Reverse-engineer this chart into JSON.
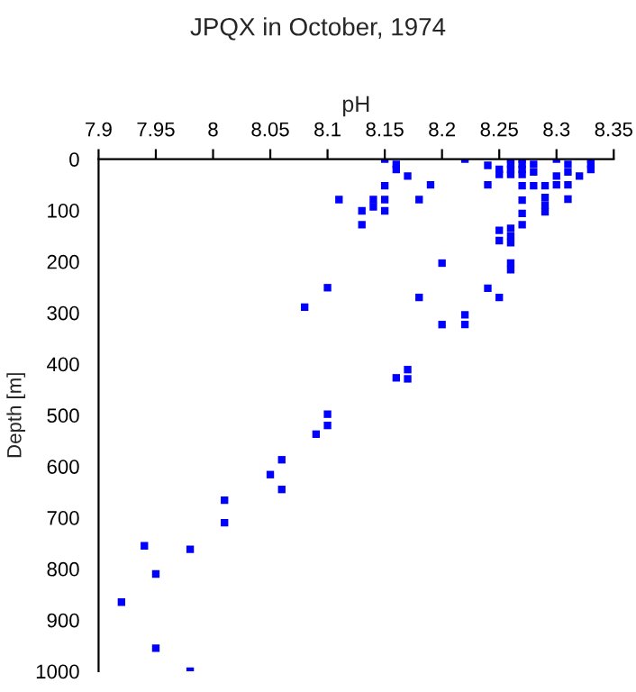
{
  "chart_data": {
    "type": "scatter",
    "title": "JPQX in October, 1974",
    "xlabel": "pH",
    "ylabel": "Depth [m]",
    "xlim": [
      7.9,
      8.35
    ],
    "xticks": [
      7.9,
      7.95,
      8,
      8.05,
      8.1,
      8.15,
      8.2,
      8.25,
      8.3,
      8.35
    ],
    "ylim": [
      1000,
      0
    ],
    "yticks": [
      0,
      100,
      200,
      300,
      400,
      500,
      600,
      700,
      800,
      900,
      1000
    ],
    "marker": "square",
    "grid": false,
    "legend": false,
    "series": [
      {
        "color": "#0000ff",
        "x": [
          8.15,
          8.16,
          8.16,
          8.17,
          8.22,
          8.24,
          8.25,
          8.25,
          8.26,
          8.26,
          8.26,
          8.26,
          8.27,
          8.27,
          8.27,
          8.27,
          8.28,
          8.28,
          8.3,
          8.31,
          8.31,
          8.33,
          8.33,
          8.33,
          8.15,
          8.19,
          8.24,
          8.27,
          8.28,
          8.29,
          8.3,
          8.31,
          8.32,
          8.3,
          8.11,
          8.14,
          8.15,
          8.18,
          8.27,
          8.29,
          8.29,
          8.31,
          8.14,
          8.13,
          8.15,
          8.27,
          8.29,
          8.13,
          8.27,
          8.25,
          8.25,
          8.26,
          8.26,
          8.26,
          8.2,
          8.26,
          8.26,
          8.1,
          8.24,
          8.18,
          8.25,
          8.08,
          8.22,
          8.22,
          8.2,
          8.17,
          8.17,
          8.16,
          8.1,
          8.1,
          8.09,
          8.06,
          8.05,
          8.06,
          8.01,
          8.01,
          7.94,
          7.98,
          7.95,
          7.92,
          7.95,
          7.98
        ],
        "values": [
          0,
          10,
          20,
          33,
          0,
          12,
          20,
          30,
          0,
          10,
          20,
          30,
          0,
          10,
          20,
          30,
          10,
          25,
          0,
          10,
          25,
          0,
          10,
          20,
          52,
          50,
          50,
          52,
          52,
          52,
          50,
          50,
          33,
          33,
          79,
          79,
          79,
          79,
          80,
          75,
          90,
          78,
          93,
          101,
          101,
          106,
          103,
          128,
          128,
          139,
          159,
          135,
          150,
          163,
          203,
          203,
          216,
          251,
          252,
          270,
          270,
          289,
          304,
          323,
          323,
          411,
          429,
          427,
          498,
          520,
          537,
          587,
          616,
          645,
          666,
          710,
          755,
          762,
          810,
          865,
          955,
          1000
        ]
      }
    ]
  }
}
